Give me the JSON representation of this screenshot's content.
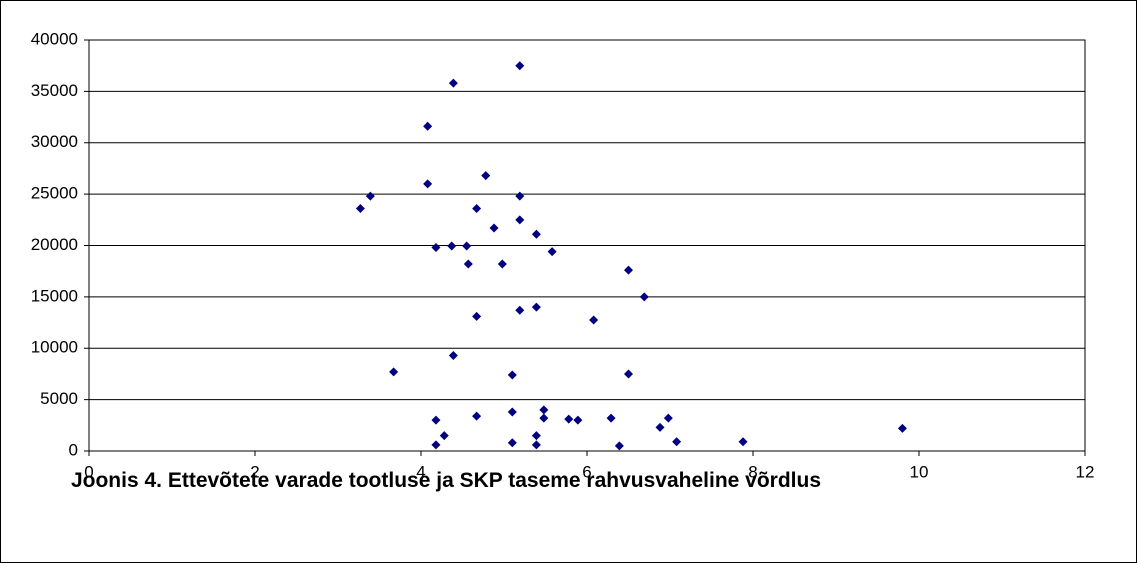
{
  "chart_data": {
    "type": "scatter",
    "title": "Joonis 4. Ettevõtete varade tootluse ja SKP taseme rahvusvaheline võrdlus",
    "color": "#000080",
    "grid": true,
    "xlim": [
      0,
      12
    ],
    "xticks": [
      0,
      2,
      4,
      6,
      8,
      10,
      12
    ],
    "ylim": [
      0,
      40000
    ],
    "yticks": [
      0,
      5000,
      10000,
      15000,
      20000,
      25000,
      30000,
      35000,
      40000
    ],
    "x": [
      4.39,
      5.19,
      4.08,
      4.08,
      4.78,
      3.39,
      3.27,
      4.67,
      5.19,
      5.19,
      4.88,
      5.39,
      4.18,
      4.37,
      4.55,
      5.58,
      4.57,
      4.98,
      6.5,
      6.69,
      4.67,
      5.19,
      5.39,
      6.08,
      4.39,
      3.67,
      5.1,
      6.5,
      4.18,
      4.67,
      5.1,
      5.48,
      5.48,
      5.78,
      5.89,
      6.29,
      6.98,
      6.88,
      4.28,
      4.18,
      5.1,
      5.39,
      5.39,
      6.39,
      7.08,
      7.88,
      9.8
    ],
    "values": [
      35800,
      37500,
      31600,
      26000,
      26800,
      24800,
      23600,
      23600,
      24800,
      22500,
      21700,
      21100,
      19800,
      19950,
      19950,
      19400,
      18200,
      18200,
      17600,
      15000,
      13100,
      13700,
      14000,
      12750,
      9300,
      7700,
      7400,
      7500,
      3000,
      3400,
      3800,
      4000,
      3200,
      3100,
      3000,
      3200,
      3200,
      2300,
      1500,
      600,
      800,
      1500,
      600,
      500,
      900,
      900,
      2200
    ]
  }
}
